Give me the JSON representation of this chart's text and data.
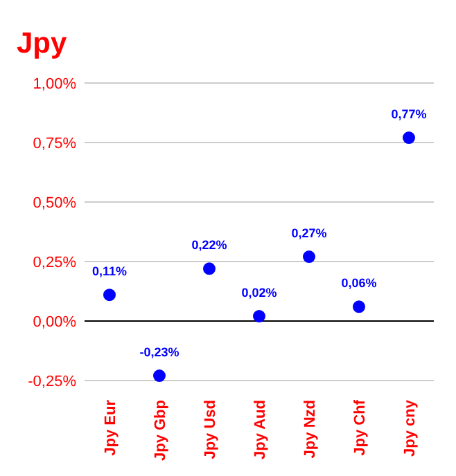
{
  "chart_data": {
    "type": "scatter",
    "title": "Jpy",
    "categories": [
      "Jpy Eur",
      "Jpy Gbp",
      "Jpy Usd",
      "Jpy Aud",
      "Jpy Nzd",
      "Jpy Chf",
      "Jpy cny"
    ],
    "values": [
      0.11,
      -0.23,
      0.22,
      0.02,
      0.27,
      0.06,
      0.77
    ],
    "value_labels": [
      "0,11%",
      "-0,23%",
      "0,22%",
      "0,02%",
      "0,27%",
      "0,06%",
      "0,77%"
    ],
    "color": "#0000ff",
    "marker": "circle",
    "ylim": [
      -0.25,
      1
    ],
    "yticks": [
      {
        "value": -0.25,
        "label": "-0,25%"
      },
      {
        "value": 0,
        "label": "0,00%"
      },
      {
        "value": 0.25,
        "label": "0,25%"
      },
      {
        "value": 0.5,
        "label": "0,50%"
      },
      {
        "value": 0.75,
        "label": "0,75%"
      },
      {
        "value": 1,
        "label": "1,00%"
      }
    ],
    "grid": "y"
  }
}
